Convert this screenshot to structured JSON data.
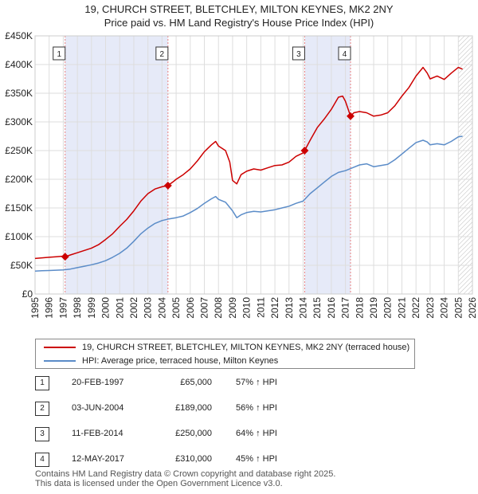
{
  "header": {
    "title": "19, CHURCH STREET, BLETCHLEY, MILTON KEYNES, MK2 2NY",
    "subtitle": "Price paid vs. HM Land Registry's House Price Index (HPI)"
  },
  "colors": {
    "property_line": "#cc0000",
    "hpi_line": "#5b8cc8",
    "shading": "#e6eaf8",
    "marker_line": "#e88080",
    "grid": "#dddddd"
  },
  "chart_data": {
    "type": "line",
    "title": "19, CHURCH STREET, BLETCHLEY, MILTON KEYNES, MK2 2NY",
    "subtitle": "Price paid vs. HM Land Registry's House Price Index (HPI)",
    "xlabel": "",
    "ylabel": "",
    "xlim": [
      1995,
      2026
    ],
    "ylim": [
      0,
      450000
    ],
    "yticks": [
      0,
      50000,
      100000,
      150000,
      200000,
      250000,
      300000,
      350000,
      400000,
      450000
    ],
    "ytick_labels": [
      "£0",
      "£50K",
      "£100K",
      "£150K",
      "£200K",
      "£250K",
      "£300K",
      "£350K",
      "£400K",
      "£450K"
    ],
    "xticks": [
      1995,
      1996,
      1997,
      1998,
      1999,
      2000,
      2001,
      2002,
      2003,
      2004,
      2005,
      2006,
      2007,
      2008,
      2009,
      2010,
      2011,
      2012,
      2013,
      2014,
      2015,
      2016,
      2017,
      2018,
      2019,
      2020,
      2021,
      2022,
      2023,
      2024,
      2025,
      2026
    ],
    "grid": true,
    "shaded_ranges": [
      [
        1997.13,
        2004.42
      ],
      [
        2014.11,
        2017.36
      ]
    ],
    "hatched_from": 2025.0,
    "series": [
      {
        "name": "19, CHURCH STREET, BLETCHLEY, MILTON KEYNES, MK2 2NY (terraced house)",
        "color": "#cc0000",
        "x": [
          1995,
          1995.5,
          1996,
          1996.5,
          1997,
          1997.13,
          1997.5,
          1998,
          1998.5,
          1999,
          1999.5,
          2000,
          2000.5,
          2001,
          2001.5,
          2002,
          2002.5,
          2003,
          2003.5,
          2004,
          2004.42,
          2004.8,
          2005,
          2005.5,
          2006,
          2006.5,
          2007,
          2007.5,
          2007.8,
          2008,
          2008.5,
          2008.8,
          2009,
          2009.3,
          2009.6,
          2010,
          2010.5,
          2011,
          2011.5,
          2012,
          2012.5,
          2013,
          2013.5,
          2014,
          2014.11,
          2014.5,
          2015,
          2015.5,
          2016,
          2016.5,
          2016.8,
          2017,
          2017.36,
          2017.6,
          2018,
          2018.5,
          2019,
          2019.5,
          2020,
          2020.5,
          2021,
          2021.5,
          2022,
          2022.5,
          2022.8,
          2023,
          2023.5,
          2024,
          2024.5,
          2025,
          2025.3
        ],
        "values": [
          62000,
          63000,
          64000,
          65000,
          66000,
          65000,
          68000,
          72000,
          76000,
          80000,
          86000,
          95000,
          105000,
          118000,
          130000,
          145000,
          162000,
          175000,
          183000,
          187000,
          189000,
          196000,
          200000,
          208000,
          218000,
          232000,
          248000,
          260000,
          266000,
          258000,
          250000,
          230000,
          198000,
          192000,
          208000,
          214000,
          218000,
          216000,
          220000,
          224000,
          225000,
          230000,
          240000,
          246000,
          250000,
          268000,
          290000,
          305000,
          322000,
          343000,
          345000,
          336000,
          310000,
          316000,
          318000,
          316000,
          310000,
          312000,
          316000,
          328000,
          345000,
          360000,
          380000,
          395000,
          385000,
          375000,
          380000,
          374000,
          385000,
          395000,
          392000
        ]
      },
      {
        "name": "HPI: Average price, terraced house, Milton Keynes",
        "color": "#5b8cc8",
        "x": [
          1995,
          1995.5,
          1996,
          1996.5,
          1997,
          1997.5,
          1998,
          1998.5,
          1999,
          1999.5,
          2000,
          2000.5,
          2001,
          2001.5,
          2002,
          2002.5,
          2003,
          2003.5,
          2004,
          2004.5,
          2005,
          2005.5,
          2006,
          2006.5,
          2007,
          2007.5,
          2007.8,
          2008,
          2008.5,
          2009,
          2009.3,
          2009.6,
          2010,
          2010.5,
          2011,
          2011.5,
          2012,
          2012.5,
          2013,
          2013.5,
          2014,
          2014.5,
          2015,
          2015.5,
          2016,
          2016.5,
          2017,
          2017.5,
          2018,
          2018.5,
          2019,
          2019.5,
          2020,
          2020.5,
          2021,
          2021.5,
          2022,
          2022.5,
          2022.8,
          2023,
          2023.5,
          2024,
          2024.5,
          2025,
          2025.3
        ],
        "values": [
          40000,
          40500,
          41000,
          41500,
          42000,
          43500,
          46000,
          48500,
          51000,
          54000,
          58000,
          64000,
          71000,
          80000,
          92000,
          105000,
          115000,
          123000,
          128000,
          131000,
          133000,
          136000,
          142000,
          149000,
          158000,
          166000,
          170000,
          165000,
          160000,
          145000,
          133000,
          138000,
          142000,
          144000,
          143000,
          145000,
          147000,
          150000,
          153000,
          158000,
          162000,
          175000,
          185000,
          195000,
          205000,
          212000,
          215000,
          220000,
          225000,
          227000,
          222000,
          224000,
          226000,
          234000,
          244000,
          254000,
          264000,
          268000,
          265000,
          260000,
          262000,
          260000,
          266000,
          274000,
          275000
        ]
      }
    ],
    "sales": [
      {
        "label": "1",
        "x": 1997.13,
        "value": 65000
      },
      {
        "label": "2",
        "x": 2004.42,
        "value": 189000
      },
      {
        "label": "3",
        "x": 2014.11,
        "value": 250000
      },
      {
        "label": "4",
        "x": 2017.36,
        "value": 310000
      }
    ]
  },
  "legend": {
    "property_label": "19, CHURCH STREET, BLETCHLEY, MILTON KEYNES, MK2 2NY (terraced house)",
    "hpi_label": "HPI: Average price, terraced house, Milton Keynes"
  },
  "transactions": [
    {
      "num": "1",
      "date": "20-FEB-1997",
      "price": "£65,000",
      "hpi": "57% ↑ HPI"
    },
    {
      "num": "2",
      "date": "03-JUN-2004",
      "price": "£189,000",
      "hpi": "56% ↑ HPI"
    },
    {
      "num": "3",
      "date": "11-FEB-2014",
      "price": "£250,000",
      "hpi": "64% ↑ HPI"
    },
    {
      "num": "4",
      "date": "12-MAY-2017",
      "price": "£310,000",
      "hpi": "45% ↑ HPI"
    }
  ],
  "footer": {
    "line1": "Contains HM Land Registry data © Crown copyright and database right 2025.",
    "line2": "This data is licensed under the Open Government Licence v3.0."
  }
}
